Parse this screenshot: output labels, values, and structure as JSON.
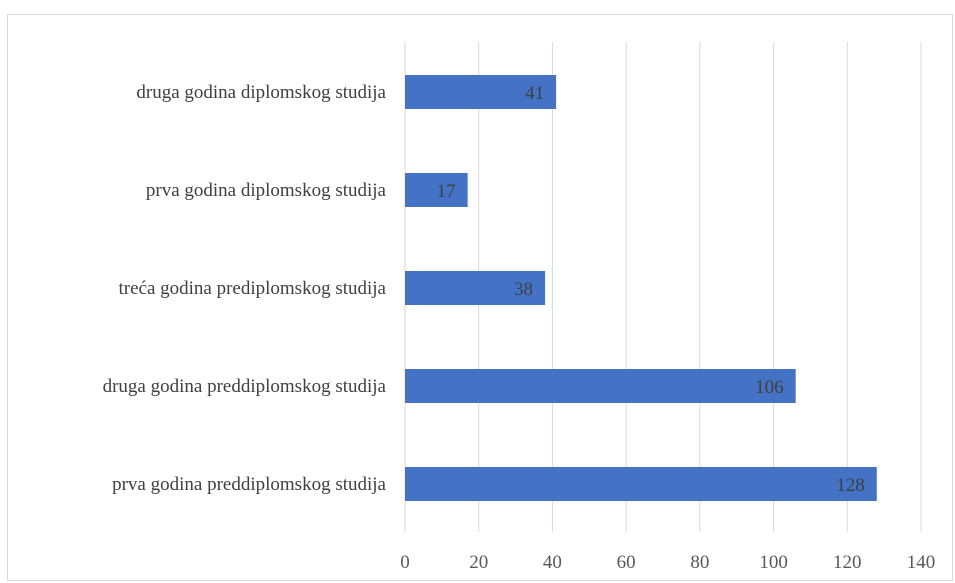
{
  "chart_data": {
    "type": "bar",
    "orientation": "horizontal",
    "categories": [
      "druga godina diplomskog studija",
      "prva godina diplomskog studija",
      "treća godina prediplomskog studija",
      "druga godina preddiplomskog studija",
      "prva godina preddiplomskog studija"
    ],
    "values": [
      41,
      17,
      38,
      106,
      128
    ],
    "xlim": [
      0,
      140
    ],
    "x_ticks": [
      0,
      20,
      40,
      60,
      80,
      100,
      120,
      140
    ],
    "x_tick_labels": [
      "0",
      "20",
      "40",
      "60",
      "80",
      "100",
      "120",
      "140"
    ],
    "grid": "vertical",
    "data_labels": "inside-end",
    "colors": {
      "bar": "#4472c4",
      "grid": "#d9d9d9",
      "frame": "#d9d9d9"
    }
  }
}
